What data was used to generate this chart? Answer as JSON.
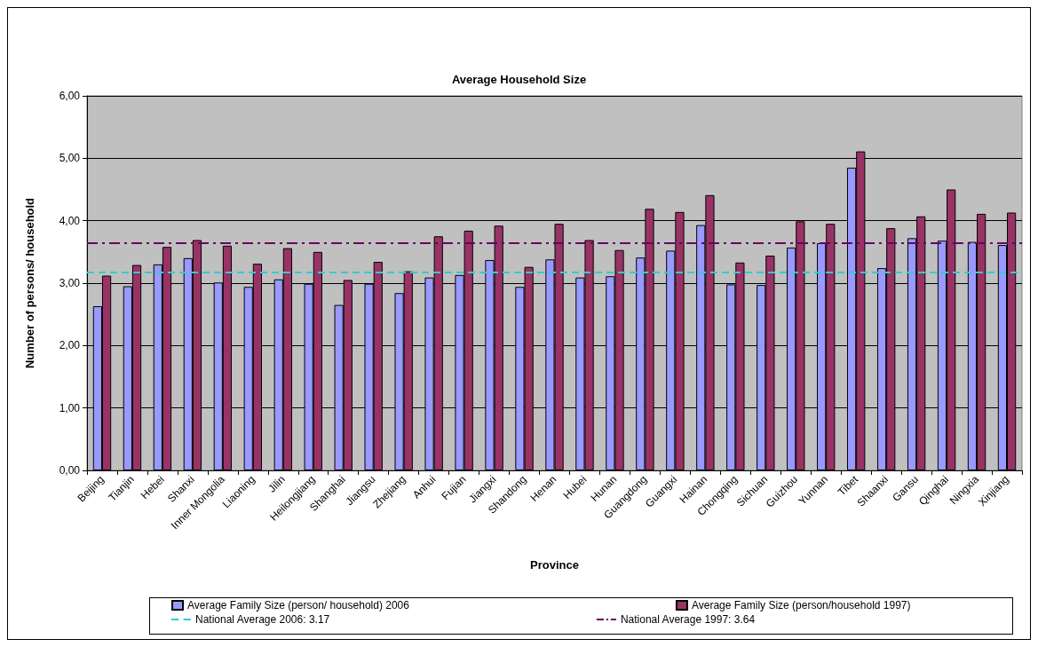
{
  "chart_data": {
    "type": "bar",
    "title": "Average Household Size",
    "xlabel": "Province",
    "ylabel": "Number of persons/ household",
    "categories": [
      "Beijing",
      "Tianjin",
      "Hebei",
      "Shanxi",
      "Inner Mongolia",
      "Liaoning",
      "Jilin",
      "Heilongjiang",
      "Shanghai",
      "Jiangsu",
      "Zhejiang",
      "Anhui",
      "Fujian",
      "Jiangxi",
      "Shandong",
      "Henan",
      "Hubei",
      "Hunan",
      "Guangdong",
      "Guangxi",
      "Hainan",
      "Chongqing",
      "Sichuan",
      "Guizhou",
      "Yunnan",
      "Tibet",
      "Shaanxi",
      "Gansu",
      "Qinghai",
      "Ningxia",
      "Xinjiang"
    ],
    "series": [
      {
        "name": "Average Family Size (person/ household) 2006",
        "color": "#9999ff",
        "values": [
          2.63,
          2.95,
          3.3,
          3.4,
          3.01,
          2.94,
          3.06,
          2.99,
          2.65,
          2.99,
          2.84,
          3.09,
          3.13,
          3.37,
          2.94,
          3.38,
          3.09,
          3.11,
          3.41,
          3.52,
          3.93,
          2.98,
          2.97,
          3.57,
          3.64,
          4.85,
          3.24,
          3.72,
          3.68,
          3.66,
          3.61
        ]
      },
      {
        "name": "Average Family Size (person/household 1997)",
        "color": "#993366",
        "values": [
          3.12,
          3.29,
          3.58,
          3.69,
          3.6,
          3.31,
          3.56,
          3.5,
          3.05,
          3.34,
          3.19,
          3.75,
          3.84,
          3.92,
          3.26,
          3.95,
          3.69,
          3.53,
          4.19,
          4.14,
          4.41,
          3.33,
          3.44,
          3.99,
          3.95,
          5.11,
          3.88,
          4.07,
          4.5,
          4.11,
          4.13
        ]
      }
    ],
    "ref_lines": [
      {
        "axis": "y",
        "value": 3.17,
        "label": "National Average 2006: 3.17",
        "color": "#33cccc",
        "line_style": "dashed"
      },
      {
        "axis": "y",
        "value": 3.64,
        "label": "National Average 1997: 3.64",
        "color": "#660066",
        "line_style": "dashdot"
      }
    ],
    "ylim": [
      0,
      6
    ],
    "yticks": [
      {
        "value": 0,
        "label": "0,00"
      },
      {
        "value": 1,
        "label": "1,00"
      },
      {
        "value": 2,
        "label": "2,00"
      },
      {
        "value": 3,
        "label": "3,00"
      },
      {
        "value": 4,
        "label": "4,00"
      },
      {
        "value": 5,
        "label": "5,00"
      },
      {
        "value": 6,
        "label": "6,00"
      }
    ],
    "grid": "y",
    "legend": "bottom"
  }
}
